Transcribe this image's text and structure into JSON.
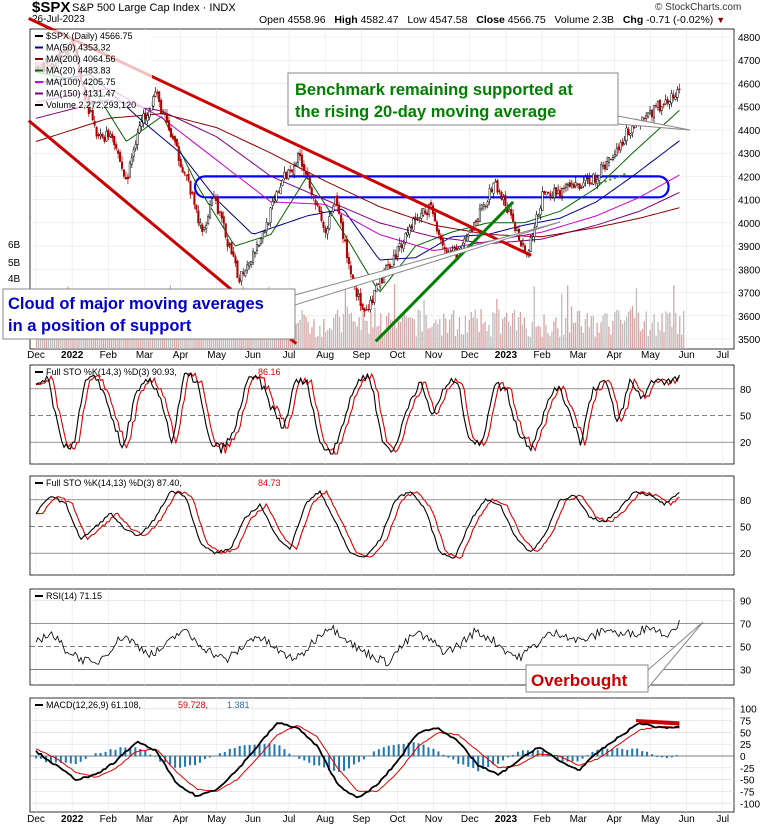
{
  "header": {
    "ticker": "$SPX",
    "name": "S&P 500 Large Cap Index",
    "exchange": "INDX",
    "date": "26-Jul-2023",
    "open_label": "Open",
    "open": "4558.96",
    "high_label": "High",
    "high": "4582.47",
    "low_label": "Low",
    "low": "4547.58",
    "close_label": "Close",
    "close": "4566.75",
    "volume_label": "Volume",
    "volume": "2.3B",
    "chg_label": "Chg",
    "chg": "-0.71 (-0.02%)",
    "brand": "© StockCharts.com"
  },
  "colors": {
    "ma50": "#00008b",
    "ma200": "#8b0000",
    "ma20": "#006400",
    "ma100": "#cc00cc",
    "ma150": "#800080",
    "trend": "#cc0000",
    "support_line": "#008000",
    "box": "#0000ff",
    "volume": "#c0c0c0",
    "sto_k": "#000000",
    "sto_d": "#e00000",
    "macd_hist": "#1f77b4"
  },
  "chart_data": [
    {
      "type": "candlestick",
      "panel": "price",
      "legend": [
        {
          "text": "$SPX (Daily) 4566.75",
          "color": "#000000"
        },
        {
          "text": "MA(50) 4353.32",
          "color": "#00008b"
        },
        {
          "text": "MA(200) 4064.56",
          "color": "#8b0000"
        },
        {
          "text": "MA(20) 4483.83",
          "color": "#006400"
        },
        {
          "text": "MA(100) 4205.75",
          "color": "#cc00cc"
        },
        {
          "text": "MA(150) 4131.47",
          "color": "#800080"
        },
        {
          "text": "Volume 2,272,293,120",
          "color": "#000000"
        }
      ],
      "x_ticks": [
        "Dec",
        "2022",
        "Feb",
        "Mar",
        "Apr",
        "May",
        "Jun",
        "Jul",
        "Aug",
        "Sep",
        "Oct",
        "Nov",
        "Dec",
        "2023",
        "Feb",
        "Mar",
        "Apr",
        "May",
        "Jun",
        "Jul"
      ],
      "y_ticks": [
        3500,
        3600,
        3700,
        3800,
        3900,
        4000,
        4100,
        4200,
        4300,
        4400,
        4500,
        4600,
        4700,
        4800
      ],
      "volume_ticks": [
        "4B",
        "5B",
        "6B"
      ],
      "ylim": [
        3450,
        4830
      ],
      "close_path": [
        {
          "m": 0.0,
          "v": 4650
        },
        {
          "m": 0.6,
          "v": 4700
        },
        {
          "m": 1.0,
          "v": 4770
        },
        {
          "m": 1.3,
          "v": 4580
        },
        {
          "m": 1.7,
          "v": 4360
        },
        {
          "m": 2.1,
          "v": 4390
        },
        {
          "m": 2.5,
          "v": 4170
        },
        {
          "m": 2.8,
          "v": 4390
        },
        {
          "m": 3.3,
          "v": 4560
        },
        {
          "m": 3.8,
          "v": 4350
        },
        {
          "m": 4.2,
          "v": 4180
        },
        {
          "m": 4.6,
          "v": 3950
        },
        {
          "m": 4.9,
          "v": 4130
        },
        {
          "m": 5.3,
          "v": 3920
        },
        {
          "m": 5.6,
          "v": 3760
        },
        {
          "m": 5.9,
          "v": 3840
        },
        {
          "m": 6.3,
          "v": 3960
        },
        {
          "m": 6.8,
          "v": 4180
        },
        {
          "m": 7.3,
          "v": 4290
        },
        {
          "m": 7.6,
          "v": 4160
        },
        {
          "m": 8.0,
          "v": 3950
        },
        {
          "m": 8.3,
          "v": 4100
        },
        {
          "m": 8.7,
          "v": 3790
        },
        {
          "m": 9.1,
          "v": 3590
        },
        {
          "m": 9.5,
          "v": 3740
        },
        {
          "m": 9.9,
          "v": 3850
        },
        {
          "m": 10.4,
          "v": 4000
        },
        {
          "m": 10.9,
          "v": 4070
        },
        {
          "m": 11.4,
          "v": 3850
        },
        {
          "m": 11.8,
          "v": 3890
        },
        {
          "m": 12.3,
          "v": 4050
        },
        {
          "m": 12.7,
          "v": 4170
        },
        {
          "m": 13.2,
          "v": 4000
        },
        {
          "m": 13.6,
          "v": 3860
        },
        {
          "m": 14.0,
          "v": 4110
        },
        {
          "m": 14.5,
          "v": 4140
        },
        {
          "m": 15.0,
          "v": 4160
        },
        {
          "m": 15.5,
          "v": 4200
        },
        {
          "m": 16.0,
          "v": 4300
        },
        {
          "m": 16.4,
          "v": 4400
        },
        {
          "m": 16.8,
          "v": 4450
        },
        {
          "m": 17.3,
          "v": 4510
        },
        {
          "m": 17.8,
          "v": 4560
        }
      ],
      "moving_averages": [
        {
          "name": "MA(20)",
          "points": [
            {
              "m": 0.0,
              "v": 4650
            },
            {
              "m": 1.5,
              "v": 4600
            },
            {
              "m": 2.5,
              "v": 4350
            },
            {
              "m": 3.5,
              "v": 4460
            },
            {
              "m": 4.5,
              "v": 4150
            },
            {
              "m": 5.5,
              "v": 3900
            },
            {
              "m": 6.5,
              "v": 3950
            },
            {
              "m": 7.5,
              "v": 4200
            },
            {
              "m": 8.5,
              "v": 3960
            },
            {
              "m": 9.5,
              "v": 3700
            },
            {
              "m": 10.5,
              "v": 3900
            },
            {
              "m": 11.5,
              "v": 3960
            },
            {
              "m": 12.5,
              "v": 4000
            },
            {
              "m": 13.5,
              "v": 4000
            },
            {
              "m": 14.5,
              "v": 4050
            },
            {
              "m": 15.5,
              "v": 4150
            },
            {
              "m": 16.5,
              "v": 4300
            },
            {
              "m": 17.8,
              "v": 4484
            }
          ]
        },
        {
          "name": "MA(50)",
          "points": [
            {
              "m": 0.0,
              "v": 4600
            },
            {
              "m": 1.5,
              "v": 4640
            },
            {
              "m": 3.0,
              "v": 4430
            },
            {
              "m": 4.0,
              "v": 4300
            },
            {
              "m": 5.0,
              "v": 4100
            },
            {
              "m": 6.0,
              "v": 3950
            },
            {
              "m": 7.5,
              "v": 4030
            },
            {
              "m": 8.5,
              "v": 4060
            },
            {
              "m": 9.5,
              "v": 3840
            },
            {
              "m": 10.5,
              "v": 3850
            },
            {
              "m": 11.5,
              "v": 3940
            },
            {
              "m": 12.5,
              "v": 3950
            },
            {
              "m": 13.5,
              "v": 3990
            },
            {
              "m": 14.5,
              "v": 4020
            },
            {
              "m": 15.5,
              "v": 4090
            },
            {
              "m": 16.5,
              "v": 4200
            },
            {
              "m": 17.8,
              "v": 4353
            }
          ]
        },
        {
          "name": "MA(100)",
          "points": [
            {
              "m": 0.0,
              "v": 4520
            },
            {
              "m": 2.0,
              "v": 4580
            },
            {
              "m": 3.5,
              "v": 4450
            },
            {
              "m": 5.0,
              "v": 4270
            },
            {
              "m": 6.5,
              "v": 4090
            },
            {
              "m": 8.0,
              "v": 4080
            },
            {
              "m": 9.5,
              "v": 3950
            },
            {
              "m": 11.0,
              "v": 3880
            },
            {
              "m": 12.5,
              "v": 3920
            },
            {
              "m": 14.0,
              "v": 3960
            },
            {
              "m": 15.5,
              "v": 4030
            },
            {
              "m": 16.7,
              "v": 4110
            },
            {
              "m": 17.8,
              "v": 4206
            }
          ]
        },
        {
          "name": "MA(150)",
          "points": [
            {
              "m": 0.0,
              "v": 4450
            },
            {
              "m": 2.0,
              "v": 4530
            },
            {
              "m": 3.5,
              "v": 4480
            },
            {
              "m": 5.0,
              "v": 4370
            },
            {
              "m": 6.5,
              "v": 4200
            },
            {
              "m": 8.0,
              "v": 4100
            },
            {
              "m": 9.5,
              "v": 4000
            },
            {
              "m": 11.0,
              "v": 3940
            },
            {
              "m": 12.5,
              "v": 3910
            },
            {
              "m": 14.0,
              "v": 3930
            },
            {
              "m": 15.5,
              "v": 3990
            },
            {
              "m": 16.7,
              "v": 4050
            },
            {
              "m": 17.8,
              "v": 4131
            }
          ]
        },
        {
          "name": "MA(200)",
          "points": [
            {
              "m": 0.0,
              "v": 4350
            },
            {
              "m": 2.0,
              "v": 4450
            },
            {
              "m": 3.5,
              "v": 4470
            },
            {
              "m": 5.0,
              "v": 4410
            },
            {
              "m": 6.5,
              "v": 4300
            },
            {
              "m": 8.0,
              "v": 4180
            },
            {
              "m": 9.5,
              "v": 4070
            },
            {
              "m": 11.0,
              "v": 3990
            },
            {
              "m": 12.5,
              "v": 3950
            },
            {
              "m": 14.0,
              "v": 3940
            },
            {
              "m": 15.5,
              "v": 3980
            },
            {
              "m": 16.7,
              "v": 4020
            },
            {
              "m": 17.8,
              "v": 4065
            }
          ]
        }
      ],
      "trendlines": [
        {
          "name": "upper-downtrend",
          "from": {
            "m": -0.2,
            "v": 4880
          },
          "to": {
            "m": 13.7,
            "v": 3860
          }
        },
        {
          "name": "lower-channel",
          "from": {
            "m": -0.2,
            "v": 4440
          },
          "to": {
            "m": 7.2,
            "v": 3480
          }
        },
        {
          "name": "rising-support",
          "from": {
            "m": 9.4,
            "v": 3490
          },
          "to": {
            "m": 13.2,
            "v": 4090
          }
        }
      ],
      "resistance_box": {
        "from_m": 4.4,
        "to_m": 17.5,
        "low": 4110,
        "high": 4200
      },
      "annotations": [
        {
          "text": "Benchmark remaining supported at the rising 20-day moving average",
          "color": "#008000"
        },
        {
          "text": "Cloud of major moving averages in a position of support",
          "color": "#0000cc"
        }
      ]
    },
    {
      "type": "line",
      "panel": "stochastic-fast",
      "legend": [
        "Full STO %K(14,3) %D(3) 90.93,",
        "86.16"
      ],
      "ylim": [
        0,
        100
      ],
      "y_ticks": [
        20,
        50,
        80
      ],
      "pattern": [
        85,
        90,
        20,
        15,
        88,
        92,
        55,
        10,
        70,
        90,
        75,
        18,
        95,
        90,
        20,
        12,
        30,
        88,
        92,
        60,
        35,
        90,
        85,
        15,
        10,
        50,
        90,
        95,
        20,
        10,
        60,
        88,
        50,
        80,
        92,
        25,
        15,
        85,
        80,
        30,
        15,
        50,
        85,
        60,
        20,
        80,
        90,
        40,
        88,
        70,
        92,
        88,
        91
      ]
    },
    {
      "type": "line",
      "panel": "stochastic-slow",
      "legend": [
        "Full STO %K(14,13) %D(3) 87.40,",
        "84.73"
      ],
      "ylim": [
        0,
        100
      ],
      "y_ticks": [
        20,
        50,
        80
      ],
      "pattern": [
        65,
        85,
        75,
        35,
        50,
        65,
        45,
        40,
        60,
        90,
        85,
        30,
        20,
        25,
        60,
        75,
        40,
        25,
        75,
        90,
        55,
        20,
        15,
        35,
        80,
        90,
        70,
        20,
        15,
        55,
        80,
        75,
        40,
        20,
        40,
        80,
        85,
        60,
        55,
        70,
        90,
        85,
        75,
        87
      ]
    },
    {
      "type": "line",
      "panel": "rsi",
      "legend": [
        "RSI(14) 71.15"
      ],
      "ylim": [
        20,
        95
      ],
      "y_ticks": [
        30,
        50,
        70,
        90
      ],
      "pattern": [
        55,
        62,
        48,
        40,
        34,
        47,
        60,
        50,
        43,
        52,
        65,
        54,
        45,
        38,
        48,
        60,
        52,
        42,
        40,
        55,
        68,
        60,
        48,
        42,
        36,
        50,
        62,
        55,
        45,
        52,
        63,
        58,
        48,
        40,
        50,
        60,
        62,
        55,
        58,
        66,
        60,
        62,
        68,
        60,
        71
      ]
    },
    {
      "type": "line",
      "panel": "macd",
      "legend": [
        "MACD(12,26,9) 61.108,",
        "59.728,",
        "1.381"
      ],
      "ylim": [
        -110,
        110
      ],
      "y_ticks": [
        -100,
        -75,
        -50,
        -25,
        0,
        25,
        50,
        75,
        100
      ],
      "x_ticks": [
        "Dec",
        "2022",
        "Feb",
        "Mar",
        "Apr",
        "May",
        "Jun",
        "Jul",
        "Aug",
        "Sep",
        "Oct",
        "Nov",
        "Dec",
        "2023",
        "Feb",
        "Mar",
        "Apr",
        "May",
        "Jun",
        "Jul"
      ],
      "macd_pattern": [
        10,
        -20,
        -50,
        -40,
        -10,
        30,
        10,
        -60,
        -85,
        -70,
        -30,
        20,
        70,
        60,
        20,
        -60,
        -90,
        -60,
        -10,
        50,
        60,
        30,
        -20,
        -40,
        -10,
        20,
        -10,
        -30,
        10,
        40,
        70,
        60,
        61
      ],
      "signal_pattern": [
        15,
        -5,
        -35,
        -45,
        -25,
        10,
        15,
        -35,
        -70,
        -75,
        -50,
        -5,
        45,
        65,
        40,
        -25,
        -75,
        -75,
        -35,
        20,
        50,
        45,
        10,
        -25,
        -20,
        5,
        0,
        -20,
        -5,
        25,
        55,
        62,
        60
      ]
    }
  ],
  "panel_annotations": {
    "rsi": "Overbought"
  }
}
